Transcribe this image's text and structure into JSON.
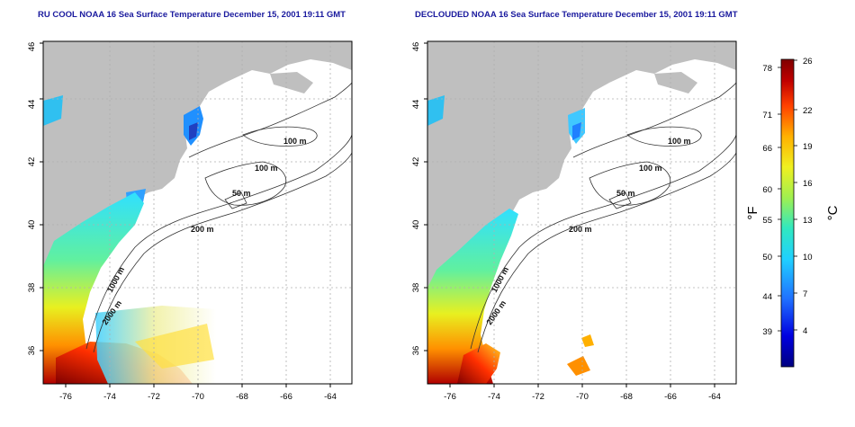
{
  "panels": [
    {
      "title": "RU COOL NOAA 16 Sea Surface Temperature December 15, 2001 19:11 GMT",
      "x_ticks": [
        "-76",
        "-74",
        "-72",
        "-70",
        "-68",
        "-66",
        "-64"
      ],
      "y_ticks": [
        "36",
        "38",
        "40",
        "42",
        "44",
        "46"
      ],
      "contour_labels": [
        "100 m",
        "100 m",
        "50 m",
        "200 m",
        "1000 m",
        "2000 m"
      ]
    },
    {
      "title": "DECLOUDED NOAA 16 Sea Surface Temperature December 15, 2001 19:11 GMT",
      "x_ticks": [
        "-76",
        "-74",
        "-72",
        "-70",
        "-68",
        "-66",
        "-64"
      ],
      "y_ticks": [
        "36",
        "38",
        "40",
        "42",
        "44",
        "46"
      ],
      "contour_labels": [
        "100 m",
        "100 m",
        "50 m",
        "200 m",
        "1000 m",
        "2000 m"
      ]
    }
  ],
  "colorbar": {
    "f_label": "°F",
    "c_label": "°C",
    "f_ticks": [
      "78",
      "71",
      "66",
      "60",
      "55",
      "50",
      "44",
      "39"
    ],
    "c_ticks": [
      "26",
      "22",
      "19",
      "16",
      "13",
      "10",
      "7",
      "4"
    ],
    "colors": [
      "#000080",
      "#0000e0",
      "#2070ff",
      "#20d0ff",
      "#30e8c0",
      "#a0f050",
      "#f0f020",
      "#ffb000",
      "#ff4000",
      "#c00000",
      "#800000"
    ]
  },
  "map_colors": {
    "land": "#bfbfbf",
    "grid": "#b0b0b0",
    "contour": "#333333"
  }
}
